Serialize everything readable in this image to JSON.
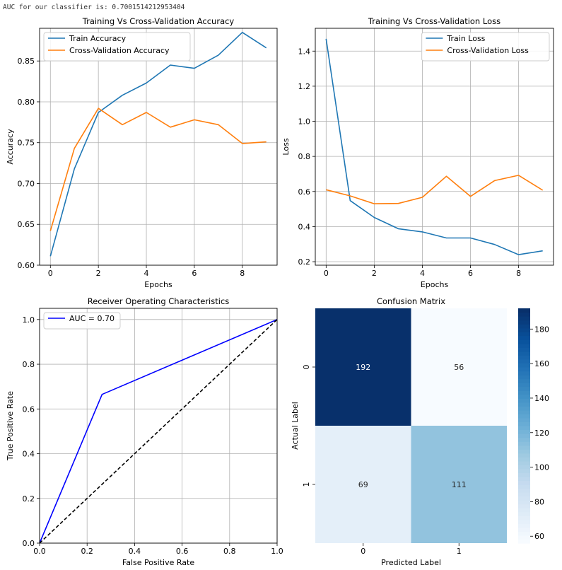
{
  "output_text": "AUC for our classifier is: 0.7001514212953404",
  "colors": {
    "train": "#1f77b4",
    "cv": "#ff7f0e",
    "roc": "#0000ff",
    "diag": "#000000",
    "grid": "#b0b0b0"
  },
  "chart_data": [
    {
      "type": "line",
      "title": "Training Vs Cross-Validation Accuracy",
      "xlabel": "Epochs",
      "ylabel": "Accuracy",
      "xlim": [
        -0.45,
        9.45
      ],
      "ylim": [
        0.6,
        0.89
      ],
      "xticks": [
        0,
        2,
        4,
        6,
        8
      ],
      "xtick_labels": [
        "0",
        "2",
        "4",
        "6",
        "8"
      ],
      "yticks": [
        0.6,
        0.65,
        0.7,
        0.75,
        0.8,
        0.85
      ],
      "ytick_labels": [
        "0.60",
        "0.65",
        "0.70",
        "0.75",
        "0.80",
        "0.85"
      ],
      "legend_pos": "upper-left",
      "grid": true,
      "x": [
        0,
        1,
        2,
        3,
        4,
        5,
        6,
        7,
        8,
        9
      ],
      "series": [
        {
          "name": "Train Accuracy",
          "color": "#1f77b4",
          "values": [
            0.611,
            0.718,
            0.787,
            0.808,
            0.823,
            0.845,
            0.841,
            0.857,
            0.885,
            0.866
          ]
        },
        {
          "name": "Cross-Validation Accuracy",
          "color": "#ff7f0e",
          "values": [
            0.642,
            0.743,
            0.792,
            0.772,
            0.787,
            0.769,
            0.778,
            0.772,
            0.749,
            0.751
          ]
        }
      ]
    },
    {
      "type": "line",
      "title": "Training Vs Cross-Validation Loss",
      "xlabel": "Epochs",
      "ylabel": "Loss",
      "xlim": [
        -0.45,
        9.45
      ],
      "ylim": [
        0.18,
        1.53
      ],
      "xticks": [
        0,
        2,
        4,
        6,
        8
      ],
      "xtick_labels": [
        "0",
        "2",
        "4",
        "6",
        "8"
      ],
      "yticks": [
        0.2,
        0.4,
        0.6,
        0.8,
        1.0,
        1.2,
        1.4
      ],
      "ytick_labels": [
        "0.2",
        "0.4",
        "0.6",
        "0.8",
        "1.0",
        "1.2",
        "1.4"
      ],
      "legend_pos": "upper-right",
      "grid": true,
      "x": [
        0,
        1,
        2,
        3,
        4,
        5,
        6,
        7,
        8,
        9
      ],
      "series": [
        {
          "name": "Train Loss",
          "color": "#1f77b4",
          "values": [
            1.47,
            0.548,
            0.452,
            0.388,
            0.37,
            0.335,
            0.335,
            0.298,
            0.24,
            0.262
          ]
        },
        {
          "name": "Cross-Validation Loss",
          "color": "#ff7f0e",
          "values": [
            0.61,
            0.575,
            0.53,
            0.532,
            0.567,
            0.687,
            0.572,
            0.662,
            0.692,
            0.607
          ]
        }
      ]
    },
    {
      "type": "line",
      "title": "Receiver Operating Characteristics",
      "xlabel": "False Positive Rate",
      "ylabel": "True Positive Rate",
      "xlim": [
        0,
        1
      ],
      "ylim": [
        0,
        1.05
      ],
      "xticks": [
        0,
        0.2,
        0.4,
        0.6,
        0.8,
        1.0
      ],
      "xtick_labels": [
        "0.0",
        "0.2",
        "0.4",
        "0.6",
        "0.8",
        "1.0"
      ],
      "yticks": [
        0,
        0.2,
        0.4,
        0.6,
        0.8,
        1.0
      ],
      "ytick_labels": [
        "0.0",
        "0.2",
        "0.4",
        "0.6",
        "0.8",
        "1.0"
      ],
      "legend_pos": "upper-left",
      "grid": true,
      "series": [
        {
          "name": "AUC = 0.70",
          "color": "#0000ff",
          "style": "solid",
          "x": [
            0,
            0.263,
            1
          ],
          "values": [
            0,
            0.665,
            1
          ]
        },
        {
          "name": "",
          "color": "#000000",
          "style": "dashed",
          "x": [
            0,
            1
          ],
          "values": [
            0,
            1
          ]
        }
      ]
    },
    {
      "type": "heatmap",
      "title": "Confusion Matrix",
      "xlabel": "Predicted Label",
      "ylabel": "Actual Label",
      "xtick_labels": [
        "0",
        "1"
      ],
      "ytick_labels": [
        "0",
        "1"
      ],
      "values": [
        [
          192,
          56
        ],
        [
          69,
          111
        ]
      ],
      "colorbar_range": [
        56,
        192
      ],
      "colorbar_ticks": [
        60,
        80,
        100,
        120,
        140,
        160,
        180
      ],
      "colorbar_tick_labels": [
        "60",
        "80",
        "100",
        "120",
        "140",
        "160",
        "180"
      ]
    }
  ]
}
